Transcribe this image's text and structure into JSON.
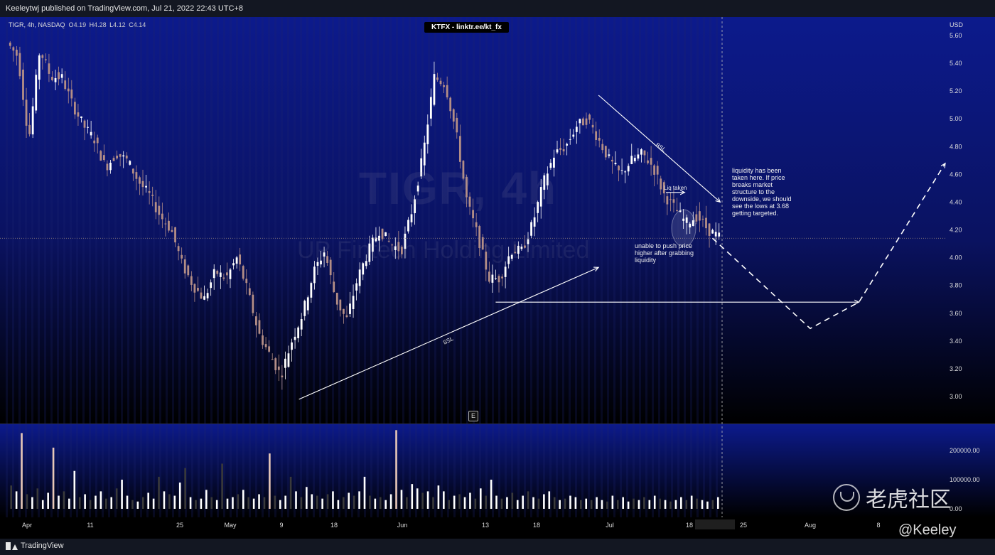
{
  "header": {
    "publish_text": "Keeleytwj published on TradingView.com, Jul 21, 2022 22:43 UTC+8"
  },
  "legend": {
    "symbol": "TIGR, 4h, NASDAQ",
    "o_label": "O",
    "o_value": "4.19",
    "h_label": "H",
    "h_value": "4.28",
    "l_label": "L",
    "l_value": "4.12",
    "c_label": "C",
    "c_value": "4.14"
  },
  "banner": "KTFX - linktr.ee/kt_fx",
  "currency": "USD",
  "symbol_watermark": {
    "title": "TIGR, 4h",
    "subtitle": "UP Fintech Holding Limited"
  },
  "annotations": {
    "liquidity_note": "liquidity has been taken here. If price breaks market structure to the downside, we should see the lows at 3.68 getting targeted.",
    "unable_note": "unable to push price higher after grabbing liquidity",
    "liq_taken": "Liq taken",
    "bsl": "BSL",
    "ssl": "SSL",
    "earnings_marker": "E"
  },
  "footer": {
    "brand": "TradingView",
    "cn_watermark": "老虎社区",
    "handle": "@Keeley"
  },
  "colors": {
    "panel_top": "#0c1a8c",
    "panel_bottom": "#000000",
    "candle_up": "#ffffff",
    "candle_down": "#b48e86",
    "volume_up": "#ffffff",
    "volume_down": "#3a3a3a",
    "highlight_volume": "#e8c8b8"
  },
  "chart_data": [
    {
      "type": "candlestick",
      "title": "",
      "y_axis_ticks": [
        "5.60",
        "5.40",
        "5.20",
        "5.00",
        "4.80",
        "4.60",
        "4.40",
        "4.20",
        "4.00",
        "3.80",
        "3.60",
        "3.40",
        "3.20",
        "3.00"
      ],
      "ylim": [
        2.88,
        5.68
      ],
      "last_price": 4.14,
      "x_tick_labels": [
        "Apr",
        "11",
        "25",
        "May",
        "9",
        "18",
        "Jun",
        "13",
        "18",
        "Jul",
        "18",
        "25",
        "Aug",
        "8"
      ],
      "trend_lines": [
        {
          "name": "SSL",
          "from": {
            "date": "2022-05-12",
            "price": 2.98
          },
          "to": {
            "date": "2022-06-29",
            "price": 3.93
          }
        },
        {
          "name": "BSL",
          "from": {
            "date": "2022-06-29",
            "price": 5.17
          },
          "to": {
            "date": "2022-07-22",
            "price": 4.4
          }
        },
        {
          "name": "Liq taken",
          "from": {
            "date": "2022-07-13",
            "price": 4.47
          },
          "to": {
            "date": "2022-07-17",
            "price": 4.47
          }
        },
        {
          "name": "3.68 low",
          "from": {
            "date": "2022-06-14",
            "price": 3.68
          },
          "to": {
            "date": "2022-08-06",
            "price": 3.68
          }
        }
      ],
      "projection_path": [
        {
          "date": "2022-07-21",
          "price": 4.14
        },
        {
          "date": "2022-08-01",
          "price": 3.49
        },
        {
          "date": "2022-08-06",
          "price": 3.68
        },
        {
          "date": "2022-08-15",
          "price": 4.68
        }
      ],
      "price_path_approx": [
        5.55,
        5.45,
        4.85,
        5.5,
        5.3,
        5.3,
        5.1,
        4.95,
        4.85,
        4.65,
        4.75,
        4.7,
        4.55,
        4.45,
        4.3,
        4.2,
        3.95,
        3.8,
        3.7,
        3.9,
        3.85,
        4.0,
        3.75,
        3.45,
        3.3,
        3.15,
        3.4,
        3.6,
        3.9,
        4.05,
        3.7,
        3.55,
        3.85,
        4.05,
        4.2,
        4.1,
        4.05,
        4.35,
        4.75,
        5.3,
        5.25,
        4.9,
        4.4,
        4.15,
        3.85,
        3.85,
        4.05,
        4.05,
        4.25,
        4.55,
        4.75,
        4.8,
        4.95,
        5.0,
        4.85,
        4.7,
        4.6,
        4.7,
        4.75,
        4.65,
        4.45,
        4.35,
        4.25,
        4.3,
        4.2,
        4.15
      ]
    },
    {
      "type": "bar",
      "title": "",
      "y_axis_ticks": [
        "200000.00",
        "100000.00",
        "0.00"
      ],
      "ylim": [
        0,
        260000
      ],
      "volume_approx": [
        80000,
        60000,
        260000,
        50000,
        40000,
        70000,
        30000,
        55000,
        210000,
        45000,
        60000,
        35000,
        130000,
        40000,
        50000,
        30000,
        45000,
        60000,
        35000,
        40000,
        70000,
        100000,
        45000,
        30000,
        25000,
        40000,
        55000,
        35000,
        110000,
        60000,
        50000,
        45000,
        90000,
        140000,
        40000,
        30000,
        35000,
        65000,
        40000,
        30000,
        155000,
        35000,
        40000,
        50000,
        65000,
        40000,
        35000,
        50000,
        40000,
        190000,
        45000,
        30000,
        45000,
        110000,
        60000,
        40000,
        75000,
        50000,
        45000,
        35000,
        50000,
        60000,
        30000,
        40000,
        55000,
        45000,
        60000,
        110000,
        45000,
        35000,
        40000,
        30000,
        50000,
        270000,
        65000,
        40000,
        85000,
        70000,
        55000,
        60000,
        40000,
        80000,
        60000,
        30000,
        45000,
        50000,
        40000,
        55000,
        35000,
        70000,
        45000,
        100000,
        45000,
        35000,
        40000,
        55000,
        30000,
        45000,
        60000,
        40000,
        35000,
        50000,
        60000,
        40000,
        30000,
        35000,
        45000,
        40000,
        30000,
        35000,
        30000,
        40000,
        30000,
        25000,
        45000,
        30000,
        40000,
        25000,
        35000,
        30000,
        40000,
        30000,
        45000,
        35000,
        30000,
        25000,
        30000,
        40000,
        30000,
        45000,
        35000,
        30000,
        25000,
        30000,
        40000
      ]
    }
  ]
}
